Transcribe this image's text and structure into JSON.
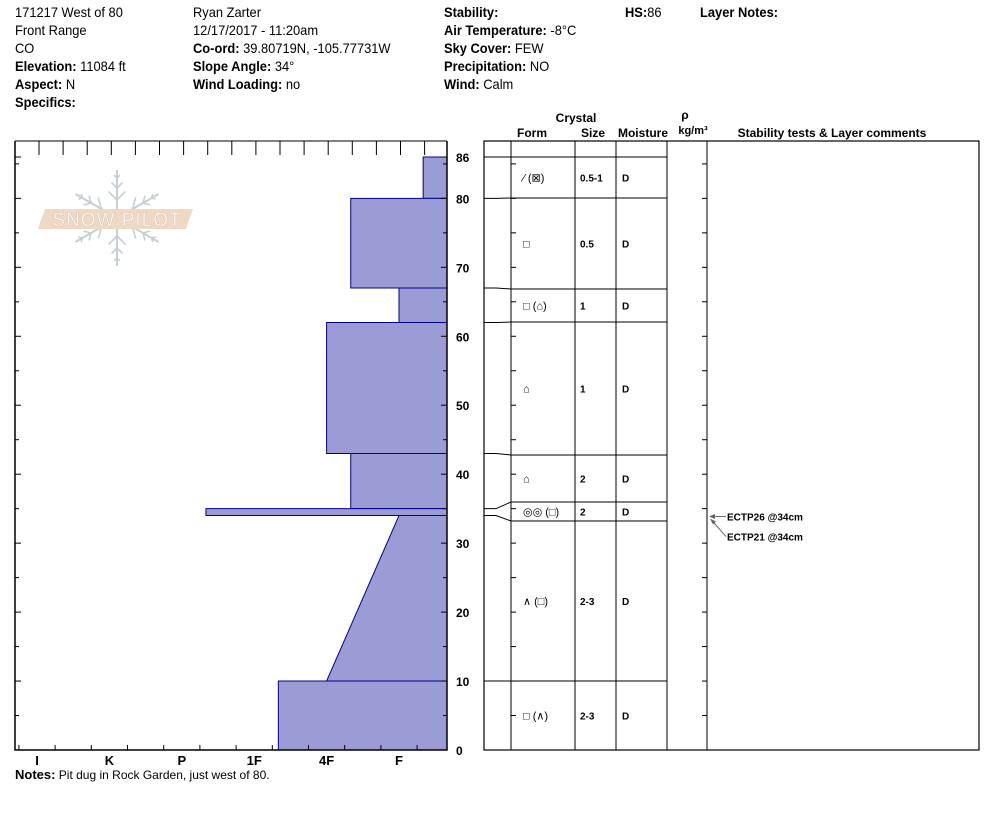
{
  "header": {
    "col1": [
      "171217 West of 80",
      "Front Range",
      "CO"
    ],
    "elevation": {
      "label": "Elevation:",
      "value": "11084 ft"
    },
    "aspect": {
      "label": "Aspect:",
      "value": "N"
    },
    "specifics": {
      "label": "Specifics:",
      "value": ""
    },
    "observer": "Ryan Zarter",
    "datetime": "12/17/2017 - 11:20am",
    "coord": {
      "label": "Co-ord:",
      "value": "39.80719N, -105.77731W"
    },
    "slope_angle": {
      "label": "Slope Angle:",
      "value": "34°"
    },
    "wind_loading": {
      "label": "Wind Loading:",
      "value": "no"
    },
    "stability": {
      "label": "Stability:",
      "value": ""
    },
    "air_temperature": {
      "label": "Air Temperature:",
      "value": "-8°C"
    },
    "sky_cover": {
      "label": "Sky Cover:",
      "value": "FEW"
    },
    "precipitation": {
      "label": "Precipitation:",
      "value": "NO"
    },
    "wind": {
      "label": "Wind:",
      "value": "Calm"
    },
    "hs": {
      "label": "HS:",
      "value": "86"
    },
    "layer_notes": {
      "label": "Layer Notes:",
      "value": ""
    }
  },
  "logo": {
    "text": "SNOW PILOT"
  },
  "notes": {
    "label": "Notes:",
    "value": "Pit dug in Rock Garden, just west of 80."
  },
  "table_header": {
    "crystal": "Crystal",
    "form": "Form",
    "size": "Size",
    "moisture": "Moisture",
    "rho": "ρ",
    "density_unit": "kg/m³",
    "comments": "Stability tests & Layer comments"
  },
  "colors": {
    "layer_fill": "#9b9bd6",
    "layer_stroke": "#00008b",
    "logo_band": "#f0d9c4",
    "logo_flake": "#c5cfd6"
  },
  "chart_data": {
    "type": "area",
    "title": "",
    "xlabel": "",
    "ylabel": "",
    "x_categories": [
      "I",
      "K",
      "P",
      "1F",
      "4F",
      "F"
    ],
    "y_ticks": [
      0,
      10,
      20,
      30,
      40,
      50,
      60,
      70,
      80,
      86
    ],
    "ylim": [
      0,
      86
    ],
    "layers": [
      {
        "top": 86,
        "bottom": 80,
        "hardness_top": "F-",
        "hardness_bottom": "F-",
        "form": "⁄ (⊠)",
        "size": "0.5-1",
        "moisture": "D"
      },
      {
        "top": 80,
        "bottom": 67,
        "hardness_top": "4F-",
        "hardness_bottom": "4F-",
        "form": "□",
        "size": "0.5",
        "moisture": "D"
      },
      {
        "top": 67,
        "bottom": 62,
        "hardness_top": "F",
        "hardness_bottom": "F",
        "form": "□ (⌂)",
        "size": "1",
        "moisture": "D"
      },
      {
        "top": 62,
        "bottom": 43,
        "hardness_top": "4F",
        "hardness_bottom": "4F",
        "form": "⌂",
        "size": "1",
        "moisture": "D"
      },
      {
        "top": 43,
        "bottom": 35,
        "hardness_top": "4F-",
        "hardness_bottom": "4F-",
        "form": "⌂",
        "size": "2",
        "moisture": "D"
      },
      {
        "top": 35,
        "bottom": 34,
        "hardness_top": "P-",
        "hardness_bottom": "P-",
        "form": "◎◎ (□)",
        "size": "2",
        "moisture": "D"
      },
      {
        "top": 34,
        "bottom": 10,
        "hardness_top": "F",
        "hardness_bottom": "4F",
        "form": "∧ (□)",
        "size": "2-3",
        "moisture": "D"
      },
      {
        "top": 10,
        "bottom": 0,
        "hardness_top": "1F-",
        "hardness_bottom": "1F-",
        "form": "□ (∧)",
        "size": "2-3",
        "moisture": "D"
      }
    ],
    "stability_tests": [
      {
        "label": "ECTP26 @34cm",
        "depth": 34
      },
      {
        "label": "ECTP21 @34cm",
        "depth": 34
      }
    ]
  }
}
